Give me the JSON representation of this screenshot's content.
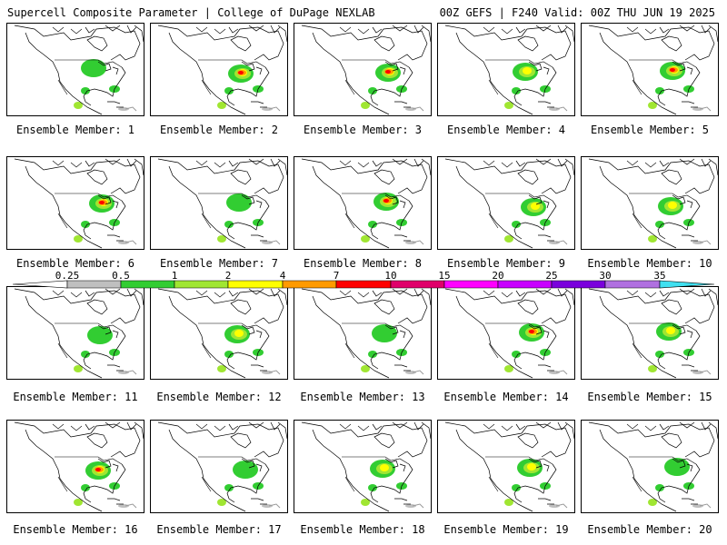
{
  "header": {
    "title_left": "Supercell Composite Parameter | College of DuPage NEXLAB",
    "title_right": "00Z GEFS | F240 Valid: 00Z THU JUN 19 2025"
  },
  "colorbar": {
    "ticks": [
      "0.25",
      "0.5",
      "1",
      "2",
      "4",
      "7",
      "10",
      "15",
      "20",
      "25",
      "30",
      "35"
    ],
    "colors": [
      "#ffffff",
      "#bfbfbf",
      "#32cd32",
      "#a0e632",
      "#ffff00",
      "#ff9a00",
      "#ff0000",
      "#e0006a",
      "#ff00ff",
      "#c800ff",
      "#7a00dc",
      "#b070e0",
      "#40e0f0"
    ]
  },
  "panels": [
    {
      "label": "Ensemble Member: 1",
      "intensity": 1
    },
    {
      "label": "Ensemble Member: 2",
      "intensity": 3
    },
    {
      "label": "Ensemble Member: 3",
      "intensity": 3
    },
    {
      "label": "Ensemble Member: 4",
      "intensity": 2
    },
    {
      "label": "Ensemble Member: 5",
      "intensity": 3
    },
    {
      "label": "Ensemble Member: 6",
      "intensity": 3
    },
    {
      "label": "Ensemble Member: 7",
      "intensity": 1
    },
    {
      "label": "Ensemble Member: 8",
      "intensity": 3
    },
    {
      "label": "Ensemble Member: 9",
      "intensity": 2
    },
    {
      "label": "Ensemble Member: 10",
      "intensity": 2
    },
    {
      "label": "Ensemble Member: 11",
      "intensity": 1
    },
    {
      "label": "Ensemble Member: 12",
      "intensity": 2
    },
    {
      "label": "Ensemble Member: 13",
      "intensity": 1
    },
    {
      "label": "Ensemble Member: 14",
      "intensity": 3
    },
    {
      "label": "Ensemble Member: 15",
      "intensity": 2
    },
    {
      "label": "Ensemble Member: 16",
      "intensity": 3
    },
    {
      "label": "Ensemble Member: 17",
      "intensity": 1
    },
    {
      "label": "Ensemble Member: 18",
      "intensity": 2
    },
    {
      "label": "Ensemble Member: 19",
      "intensity": 2
    },
    {
      "label": "Ensemble Member: 20",
      "intensity": 1
    }
  ]
}
